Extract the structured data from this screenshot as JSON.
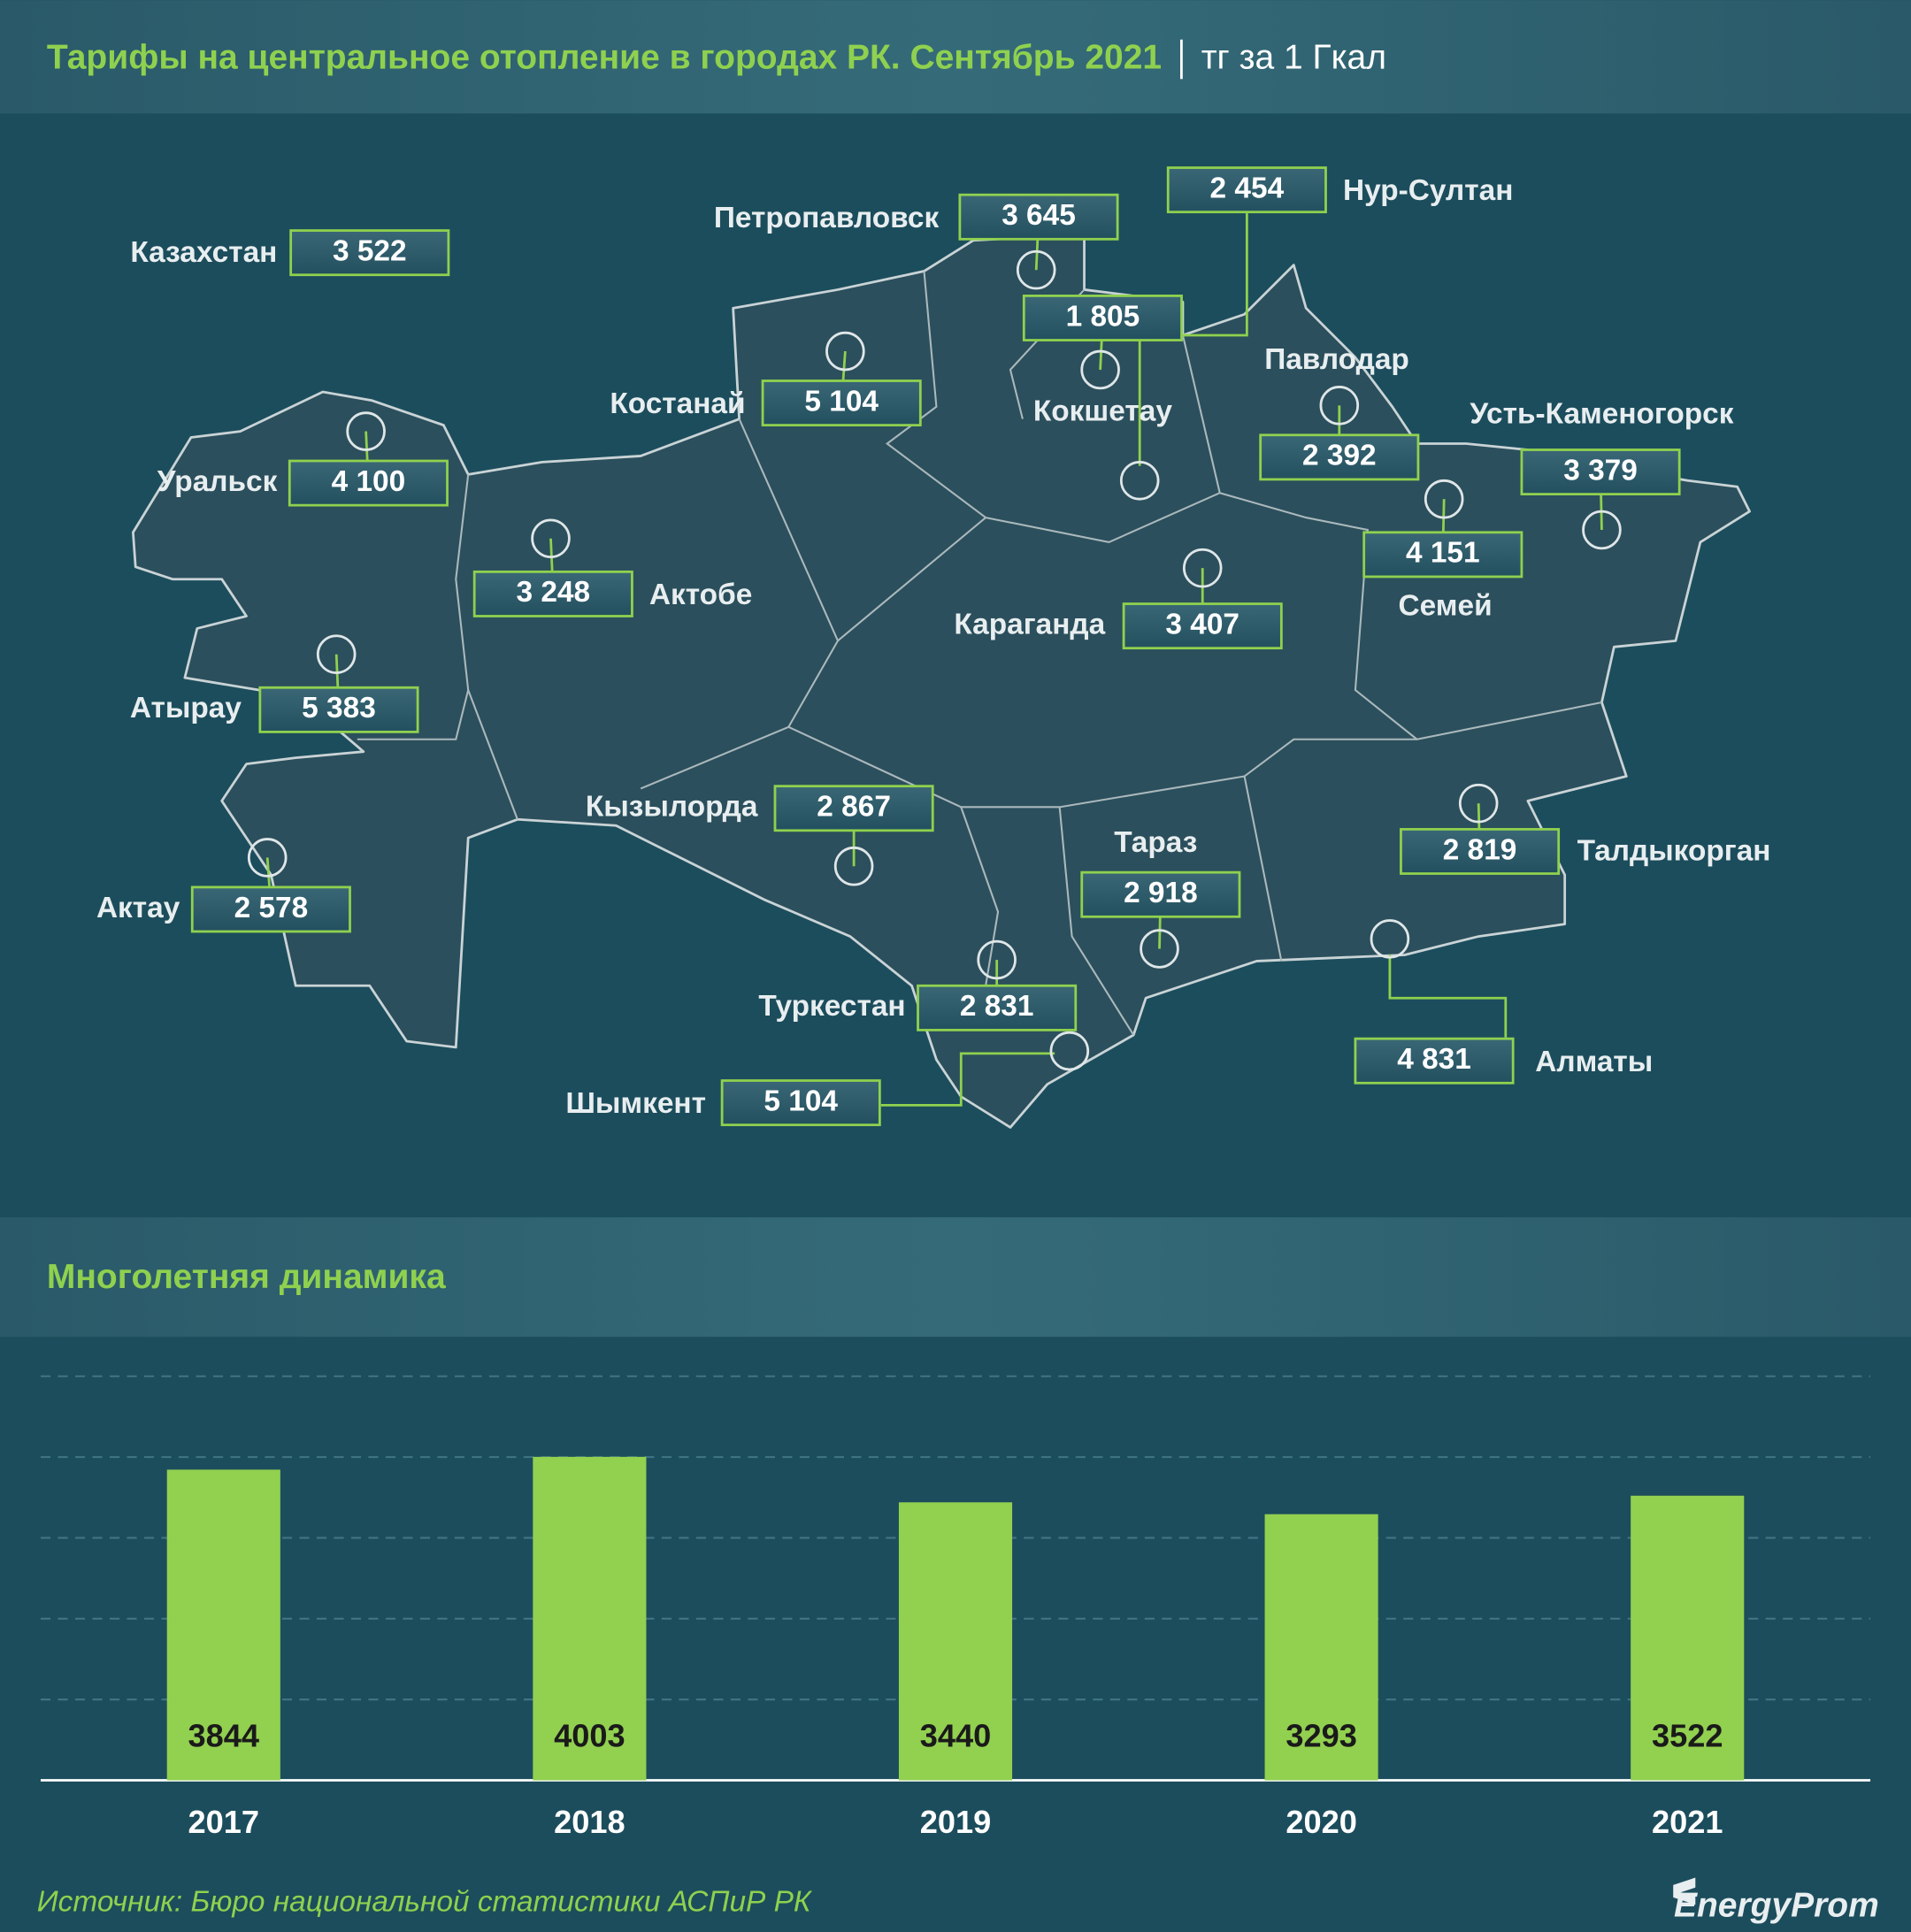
{
  "header": {
    "title": "Тарифы на центральное отопление в городах РК. Сентябрь 2021",
    "unit": "тг за 1 Гкал"
  },
  "map": {
    "cities": [
      {
        "name": "Казахстан",
        "value": "3 522"
      },
      {
        "name": "Петропавловск",
        "value": "3 645"
      },
      {
        "name": "Нур-Султан",
        "value": "2 454"
      },
      {
        "name": "Кокшетау",
        "value": "1 805"
      },
      {
        "name": "Костанай",
        "value": "5 104"
      },
      {
        "name": "Павлодар",
        "value": "2 392"
      },
      {
        "name": "Усть-Каменогорск",
        "value": "3 379"
      },
      {
        "name": "Уральск",
        "value": "4 100"
      },
      {
        "name": "Семей",
        "value": "4 151"
      },
      {
        "name": "Актобе",
        "value": "3 248"
      },
      {
        "name": "Караганда",
        "value": "3 407"
      },
      {
        "name": "Атырау",
        "value": "5 383"
      },
      {
        "name": "Кызылорда",
        "value": "2 867"
      },
      {
        "name": "Актау",
        "value": "2 578"
      },
      {
        "name": "Талдыкорган",
        "value": "2 819"
      },
      {
        "name": "Тараз",
        "value": "2 918"
      },
      {
        "name": "Туркестан",
        "value": "2 831"
      },
      {
        "name": "Алматы",
        "value": "4 831"
      },
      {
        "name": "Шымкент",
        "value": "5 104"
      }
    ]
  },
  "chart_data": {
    "type": "bar",
    "title": "Многолетняя динамика",
    "categories": [
      "2017",
      "2018",
      "2019",
      "2020",
      "2021"
    ],
    "values": [
      3844,
      4003,
      3440,
      3293,
      3522
    ],
    "color": "#92d050",
    "ylim": [
      0,
      5000
    ],
    "yticks": [
      0,
      1000,
      2000,
      3000,
      4000,
      5000
    ],
    "grid": true
  },
  "footer": {
    "source": "Источник: Бюро национальной статистики АСПиР РК",
    "logo": "EnergyProm"
  }
}
